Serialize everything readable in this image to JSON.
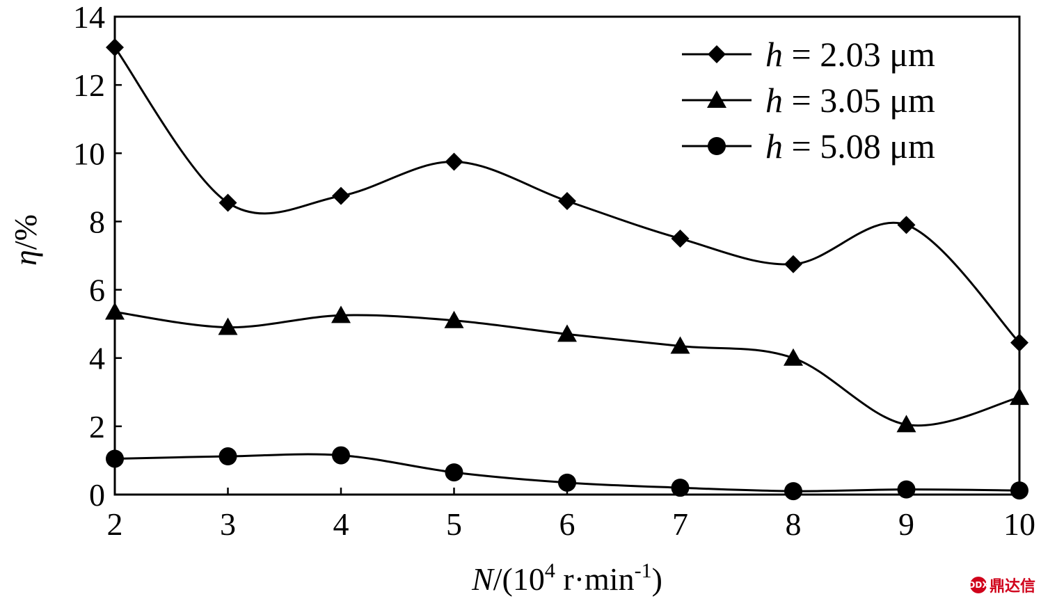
{
  "chart_data": {
    "type": "line",
    "x": [
      2,
      3,
      4,
      5,
      6,
      7,
      8,
      9,
      10
    ],
    "xlim": [
      2,
      10
    ],
    "ylim": [
      0,
      14
    ],
    "xticks": [
      "2",
      "3",
      "4",
      "5",
      "6",
      "7",
      "8",
      "9",
      "10"
    ],
    "yticks": [
      "0",
      "2",
      "4",
      "6",
      "8",
      "10",
      "12",
      "14"
    ],
    "xlabel": {
      "var": "N",
      "text_before": "/(10",
      "sup1": "4",
      "text_mid": " r·min",
      "sup2": "-1",
      "text_after": ")"
    },
    "ylabel": {
      "var": "η",
      "text": "/%"
    },
    "legend_position": "top-right",
    "grid": false,
    "series": [
      {
        "name_var": "h",
        "name_rest": " = 2.03 μm",
        "marker": "diamond",
        "values": [
          13.1,
          8.55,
          8.75,
          9.75,
          8.6,
          7.5,
          6.75,
          7.9,
          4.45
        ]
      },
      {
        "name_var": "h",
        "name_rest": " = 3.05 μm",
        "marker": "triangle",
        "values": [
          5.35,
          4.9,
          5.25,
          5.1,
          4.7,
          4.35,
          4.0,
          2.05,
          2.85
        ]
      },
      {
        "name_var": "h",
        "name_rest": " = 5.08 μm",
        "marker": "circle",
        "values": [
          1.05,
          1.12,
          1.15,
          0.65,
          0.35,
          0.2,
          0.1,
          0.15,
          0.12
        ]
      }
    ]
  },
  "watermark": {
    "logo": "DDX",
    "text": "鼎达信"
  }
}
